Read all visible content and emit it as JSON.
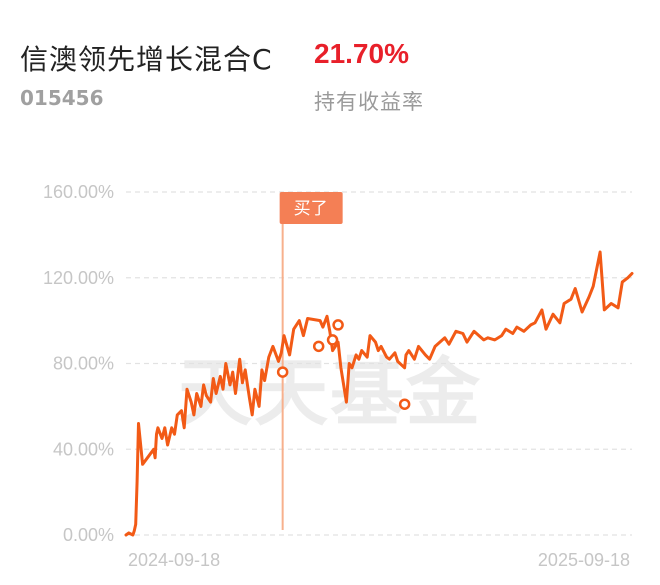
{
  "fund": {
    "name": "信澳领先增长混合C",
    "code": "015456",
    "return_value": "21.70%",
    "return_label": "持有收益率"
  },
  "watermark": "天天基金",
  "buy_marker": {
    "label": "买了",
    "date": "2025-01-09"
  },
  "colors": {
    "line": "#f25a16",
    "buy_line": "#f7b08d",
    "buy_tag": "#f47f55",
    "point_outline": "#f25a16",
    "point_fill": "#ffffff",
    "grid": "#e2e2e2",
    "return": "#e8202a"
  },
  "chart_data": {
    "type": "line",
    "title": "",
    "xlabel": "",
    "ylabel": "",
    "ylim": [
      0,
      160
    ],
    "y_ticks": [
      0,
      40,
      80,
      120,
      160
    ],
    "y_tick_labels": [
      "0.00%",
      "40.00%",
      "80.00%",
      "120.00%",
      "160.00%"
    ],
    "x_range": [
      "2024-09-18",
      "2025-09-18"
    ],
    "x_tick_labels": [
      "2024-09-18",
      "2025-09-18"
    ],
    "grid": true,
    "series": [
      {
        "x": [
          "2024-09-18",
          "2024-09-20",
          "2024-09-23",
          "2024-09-24",
          "2024-09-25",
          "2024-09-26",
          "2024-09-27",
          "2024-09-30",
          "2024-10-08",
          "2024-10-09",
          "2024-10-10",
          "2024-10-11",
          "2024-10-14",
          "2024-10-16",
          "2024-10-18",
          "2024-10-21",
          "2024-10-23",
          "2024-10-25",
          "2024-10-28",
          "2024-10-30",
          "2024-11-01",
          "2024-11-04",
          "2024-11-06",
          "2024-11-08",
          "2024-11-11",
          "2024-11-13",
          "2024-11-15",
          "2024-11-18",
          "2024-11-20",
          "2024-11-22",
          "2024-11-25",
          "2024-11-27",
          "2024-11-29",
          "2024-12-02",
          "2024-12-04",
          "2024-12-06",
          "2024-12-09",
          "2024-12-11",
          "2024-12-13",
          "2024-12-16",
          "2024-12-18",
          "2024-12-20",
          "2024-12-23",
          "2024-12-25",
          "2024-12-27",
          "2024-12-30",
          "2025-01-02",
          "2025-01-06",
          "2025-01-08",
          "2025-01-10",
          "2025-01-14",
          "2025-01-17",
          "2025-01-21",
          "2025-01-24",
          "2025-01-27",
          "2025-02-05",
          "2025-02-07",
          "2025-02-10",
          "2025-02-12",
          "2025-02-14",
          "2025-02-18",
          "2025-02-20",
          "2025-02-24",
          "2025-02-26",
          "2025-02-28",
          "2025-03-03",
          "2025-03-05",
          "2025-03-07",
          "2025-03-11",
          "2025-03-13",
          "2025-03-17",
          "2025-03-19",
          "2025-03-21",
          "2025-03-25",
          "2025-03-27",
          "2025-03-31",
          "2025-04-02",
          "2025-04-07",
          "2025-04-08",
          "2025-04-10",
          "2025-04-14",
          "2025-04-17",
          "2025-04-22",
          "2025-04-25",
          "2025-04-29",
          "2025-05-06",
          "2025-05-09",
          "2025-05-14",
          "2025-05-19",
          "2025-05-22",
          "2025-05-27",
          "2025-06-03",
          "2025-06-06",
          "2025-06-11",
          "2025-06-16",
          "2025-06-19",
          "2025-06-24",
          "2025-06-27",
          "2025-07-02",
          "2025-07-07",
          "2025-07-10",
          "2025-07-15",
          "2025-07-18",
          "2025-07-23",
          "2025-07-28",
          "2025-07-31",
          "2025-08-05",
          "2025-08-08",
          "2025-08-13",
          "2025-08-18",
          "2025-08-21",
          "2025-08-26",
          "2025-08-29",
          "2025-09-03",
          "2025-09-08",
          "2025-09-11",
          "2025-09-15",
          "2025-09-18"
        ],
        "values": [
          0,
          1,
          0,
          2,
          5,
          25,
          52,
          33,
          40,
          36,
          47,
          50,
          45,
          50,
          42,
          50,
          47,
          56,
          58,
          50,
          68,
          62,
          56,
          66,
          60,
          70,
          65,
          62,
          73,
          66,
          74,
          68,
          80,
          70,
          76,
          66,
          82,
          71,
          77,
          64,
          56,
          68,
          60,
          77,
          72,
          83,
          88,
          81,
          85,
          93,
          84,
          96,
          100,
          93,
          101,
          100,
          97,
          102,
          95,
          86,
          90,
          78,
          62,
          80,
          78,
          84,
          82,
          86,
          83,
          93,
          90,
          86,
          88,
          83,
          82,
          85,
          81,
          78,
          84,
          86,
          82,
          88,
          84,
          82,
          88,
          92,
          89,
          95,
          94,
          90,
          95,
          91,
          92,
          91,
          93,
          96,
          94,
          97,
          95,
          98,
          99,
          105,
          96,
          103,
          99,
          108,
          110,
          115,
          104,
          111,
          116,
          132,
          105,
          108,
          106,
          118,
          120,
          122
        ]
      }
    ],
    "marked_points": [
      {
        "x": "2025-01-09",
        "y": 76
      },
      {
        "x": "2025-02-04",
        "y": 88
      },
      {
        "x": "2025-02-14",
        "y": 91
      },
      {
        "x": "2025-02-18",
        "y": 98
      },
      {
        "x": "2025-04-07",
        "y": 61
      }
    ]
  }
}
